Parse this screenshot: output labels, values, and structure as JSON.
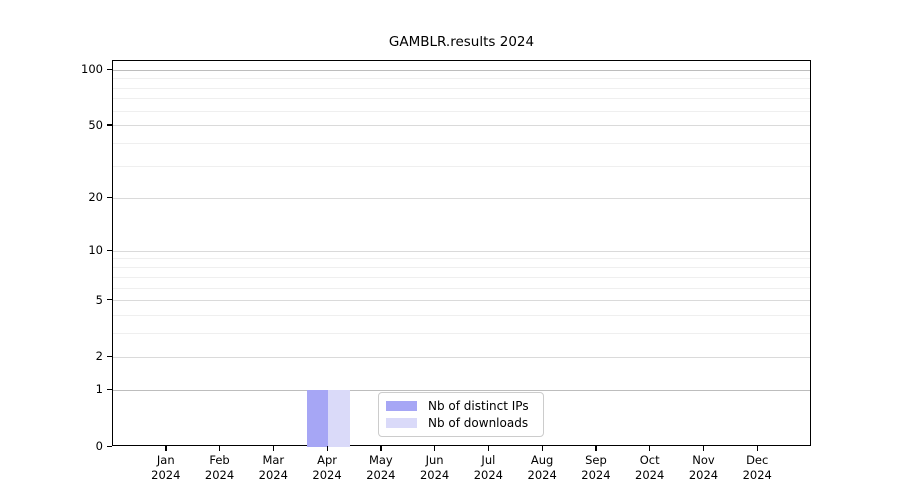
{
  "chart_data": {
    "type": "bar",
    "title": "GAMBLR.results 2024",
    "xlabel": "",
    "ylabel": "",
    "year_label": "2024",
    "categories": [
      "Jan",
      "Feb",
      "Mar",
      "Apr",
      "May",
      "Jun",
      "Jul",
      "Aug",
      "Sep",
      "Oct",
      "Nov",
      "Dec"
    ],
    "series": [
      {
        "name": "Nb of distinct IPs",
        "color": "#a6a6f5",
        "values": [
          0,
          0,
          0,
          1,
          0,
          0,
          0,
          0,
          0,
          0,
          0,
          0
        ]
      },
      {
        "name": "Nb of downloads",
        "color": "#dadaf9",
        "values": [
          0,
          0,
          0,
          1,
          0,
          0,
          0,
          0,
          0,
          0,
          0,
          0
        ]
      }
    ],
    "y_axis": {
      "scale": "log1p",
      "ticks": [
        0,
        1,
        2,
        5,
        10,
        20,
        50,
        100
      ],
      "strong_gridline_ticks": [
        1,
        100
      ],
      "minor_ticks": [
        3,
        4,
        6,
        7,
        8,
        9,
        30,
        40,
        60,
        70,
        80,
        90
      ],
      "ylim": [
        0,
        112
      ]
    },
    "legend": {
      "position": "lower-center",
      "entries": [
        "Nb of distinct IPs",
        "Nb of downloads"
      ]
    },
    "grid": true
  }
}
